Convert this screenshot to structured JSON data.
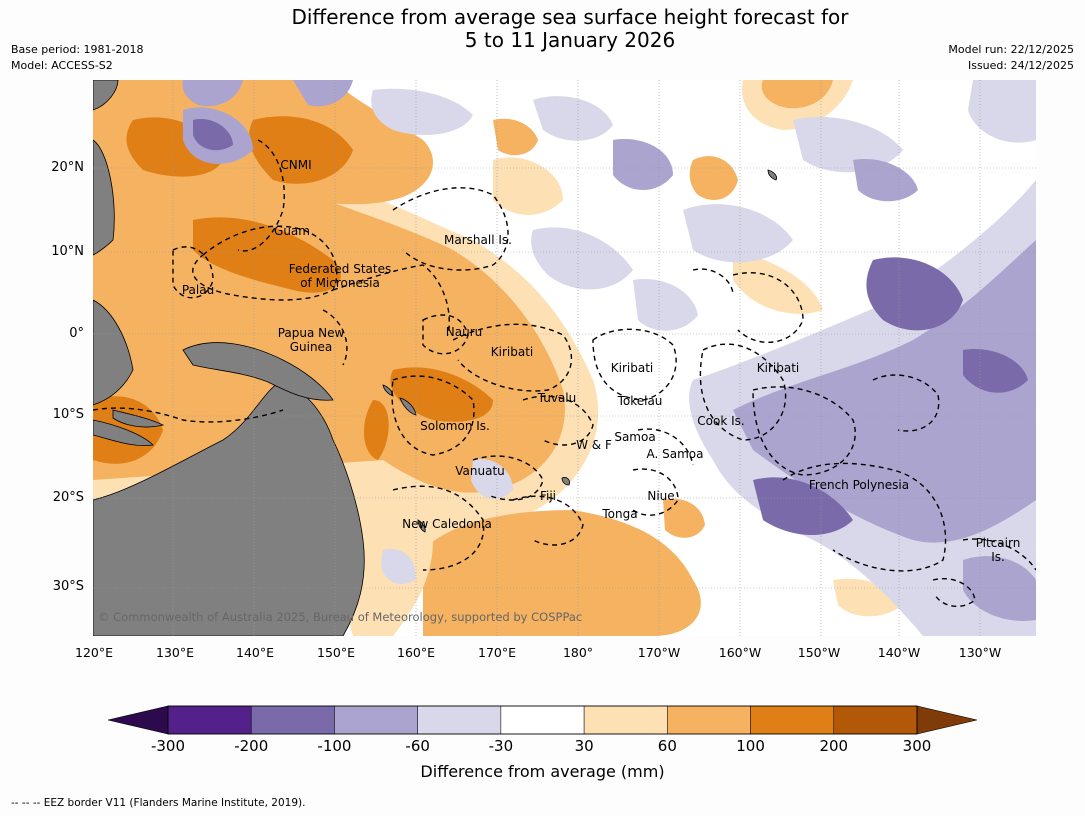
{
  "title_line1": "Difference from average sea surface height forecast for",
  "title_line2": "5 to 11 January 2026",
  "base_period": "Base period: 1981-2018",
  "model": "Model: ACCESS-S2",
  "model_run": "Model run: 22/12/2025",
  "issued": "Issued: 24/12/2025",
  "lat_labels": [
    "20°N",
    "10°N",
    "0°",
    "10°S",
    "20°S",
    "30°S"
  ],
  "lon_labels": [
    "120°E",
    "130°E",
    "140°E",
    "150°E",
    "160°E",
    "170°E",
    "180°",
    "170°W",
    "160°W",
    "150°W",
    "140°W",
    "130°W"
  ],
  "regions": {
    "cnmi": "CNMI",
    "guam": "Guam",
    "marshall": "Marshall Is.",
    "palau": "Palau",
    "fsm_1": "Federated States",
    "fsm_2": "of Micronesia",
    "png_1": "Papua New",
    "png_2": "Guinea",
    "nauru": "Nauru",
    "kiribati_w": "Kiribati",
    "kiribati_c": "Kiribati",
    "kiribati_e": "Kiribati",
    "tuvalu": "Tuvalu",
    "tokelau": "Tokelau",
    "solomon": "Solomon Is.",
    "cook": "Cook Is.",
    "samoa": "Samoa",
    "wf": "W & F",
    "asamoa": "A. Samoa",
    "vanuatu": "Vanuatu",
    "fiji": "Fiji",
    "niue": "Niue",
    "tonga": "Tonga",
    "french_polynesia": "French Polynesia",
    "new_caledonia": "New Caledonia",
    "pitcairn_1": "Pitcairn",
    "pitcairn_2": "Is."
  },
  "copyright": "© Commonwealth of Australia 2025, Bureau of Meteorology, supported by COSPPac",
  "colorbar": {
    "ticks": [
      "-300",
      "-200",
      "-100",
      "-60",
      "-30",
      "30",
      "60",
      "100",
      "200",
      "300"
    ],
    "colors": [
      "#2d0a4e",
      "#54218a",
      "#7b6aa9",
      "#aba4cf",
      "#d8d8ea",
      "#ffffff",
      "#fde0b4",
      "#f5b260",
      "#df7f16",
      "#b35806",
      "#7f3b08"
    ],
    "label": "Difference from average (mm)"
  },
  "footnote": "--  --  -- EEZ border V11 (Flanders Marine Institute, 2019).",
  "legend_colors": {
    "land": "#808080",
    "eez": "#000000",
    "grid": "#999999"
  }
}
